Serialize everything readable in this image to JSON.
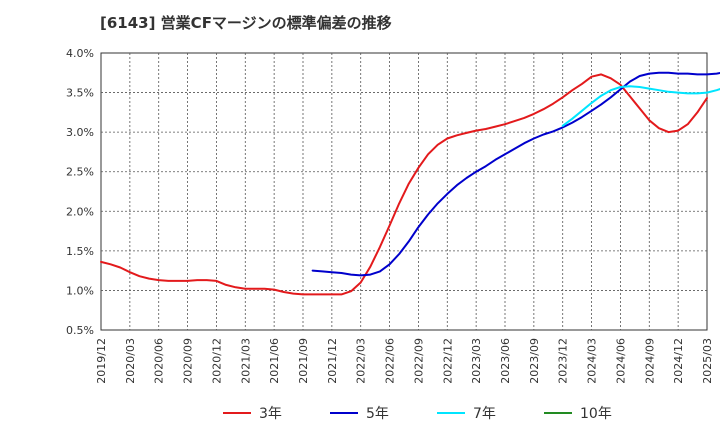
{
  "chart_data": {
    "type": "line",
    "title": "[6143]  営業CFマージンの標準偏差の推移",
    "xlabel": "",
    "ylabel": "",
    "ylim": [
      0.5,
      4.0
    ],
    "yticks": [
      "0.5%",
      "1.0%",
      "1.5%",
      "2.0%",
      "2.5%",
      "3.0%",
      "3.5%",
      "4.0%"
    ],
    "ytick_values": [
      0.5,
      1.0,
      1.5,
      2.0,
      2.5,
      3.0,
      3.5,
      4.0
    ],
    "x_tick_labels": [
      "2019/12",
      "2020/03",
      "2020/06",
      "2020/09",
      "2020/12",
      "2021/03",
      "2021/06",
      "2021/09",
      "2021/12",
      "2022/03",
      "2022/06",
      "2022/09",
      "2022/12",
      "2023/03",
      "2023/06",
      "2023/09",
      "2023/12",
      "2024/03",
      "2024/06",
      "2024/09",
      "2024/12",
      "2025/03"
    ],
    "grid": true,
    "legend_position": "bottom",
    "series": [
      {
        "name": "3年",
        "color": "#e31a1c",
        "start_index": 0,
        "values": [
          1.36,
          1.33,
          1.29,
          1.23,
          1.18,
          1.15,
          1.13,
          1.12,
          1.12,
          1.12,
          1.13,
          1.13,
          1.12,
          1.07,
          1.04,
          1.02,
          1.02,
          1.02,
          1.01,
          0.98,
          0.96,
          0.95,
          0.95,
          0.95,
          0.95,
          0.95,
          0.99,
          1.1,
          1.3,
          1.55,
          1.82,
          2.1,
          2.35,
          2.55,
          2.72,
          2.84,
          2.92,
          2.96,
          2.99,
          3.02,
          3.04,
          3.07,
          3.1,
          3.14,
          3.18,
          3.23,
          3.29,
          3.36,
          3.44,
          3.53,
          3.61,
          3.7,
          3.73,
          3.68,
          3.6,
          3.45,
          3.3,
          3.15,
          3.05,
          3.0,
          3.02,
          3.1,
          3.25,
          3.43
        ]
      },
      {
        "name": "5年",
        "color": "#0000cc",
        "start_index": 22,
        "values": [
          1.25,
          1.24,
          1.23,
          1.22,
          1.2,
          1.19,
          1.2,
          1.24,
          1.33,
          1.46,
          1.62,
          1.8,
          1.96,
          2.1,
          2.22,
          2.33,
          2.42,
          2.5,
          2.57,
          2.65,
          2.72,
          2.79,
          2.86,
          2.92,
          2.97,
          3.01,
          3.06,
          3.12,
          3.19,
          3.27,
          3.35,
          3.44,
          3.54,
          3.64,
          3.71,
          3.74,
          3.75,
          3.75,
          3.74,
          3.74,
          3.73,
          3.73,
          3.74,
          3.76,
          3.78,
          3.81
        ]
      },
      {
        "name": "7年",
        "color": "#00e5ff",
        "start_index": 48,
        "values": [
          3.08,
          3.17,
          3.27,
          3.37,
          3.46,
          3.53,
          3.57,
          3.58,
          3.57,
          3.55,
          3.53,
          3.51,
          3.5,
          3.49,
          3.49,
          3.5,
          3.53,
          3.57
        ]
      },
      {
        "name": "10年",
        "color": "#228b22",
        "start_index": 0,
        "values": []
      }
    ]
  }
}
